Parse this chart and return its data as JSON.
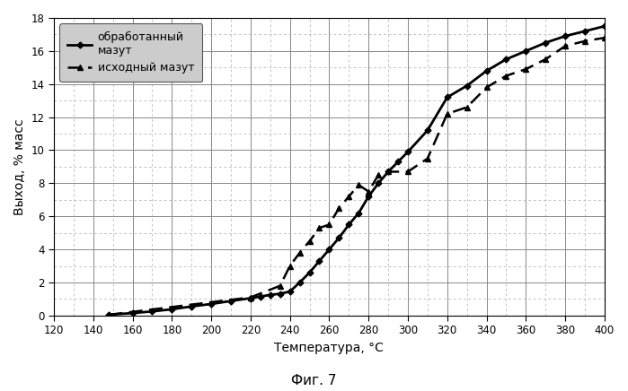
{
  "title": "Фиг. 7",
  "xlabel": "Температура, °С",
  "ylabel": "Выход, % масс",
  "xlim": [
    120,
    400
  ],
  "ylim": [
    0,
    18
  ],
  "xticks": [
    120,
    140,
    160,
    180,
    200,
    220,
    240,
    260,
    280,
    300,
    320,
    340,
    360,
    380,
    400
  ],
  "yticks": [
    0,
    2,
    4,
    6,
    8,
    10,
    12,
    14,
    16,
    18
  ],
  "series1_label": "обработанный\nмазут",
  "series2_label": "исходный мазут",
  "series1_x": [
    148,
    160,
    170,
    180,
    190,
    200,
    210,
    220,
    225,
    230,
    235,
    240,
    245,
    250,
    255,
    260,
    265,
    270,
    275,
    280,
    285,
    290,
    295,
    300,
    310,
    320,
    330,
    340,
    350,
    360,
    370,
    380,
    390,
    400
  ],
  "series1_y": [
    0.05,
    0.15,
    0.25,
    0.38,
    0.55,
    0.7,
    0.88,
    1.05,
    1.15,
    1.25,
    1.32,
    1.45,
    2.0,
    2.6,
    3.3,
    4.0,
    4.7,
    5.5,
    6.2,
    7.2,
    8.0,
    8.7,
    9.3,
    9.9,
    11.2,
    13.2,
    13.9,
    14.8,
    15.5,
    16.0,
    16.5,
    16.9,
    17.2,
    17.5
  ],
  "series2_x": [
    148,
    220,
    235,
    240,
    245,
    250,
    255,
    260,
    265,
    270,
    275,
    280,
    285,
    290,
    300,
    310,
    320,
    330,
    340,
    350,
    360,
    370,
    380,
    390,
    400
  ],
  "series2_y": [
    0.05,
    1.1,
    1.8,
    3.0,
    3.8,
    4.5,
    5.3,
    5.5,
    6.5,
    7.2,
    7.9,
    7.5,
    8.5,
    8.7,
    8.7,
    9.5,
    12.2,
    12.6,
    13.8,
    14.5,
    14.9,
    15.5,
    16.3,
    16.6,
    16.8
  ],
  "line_color": "#000000",
  "bg_color": "#ffffff",
  "grid_major_color": "#888888",
  "grid_minor_color": "#aaaaaa",
  "legend_bg": "#cccccc"
}
